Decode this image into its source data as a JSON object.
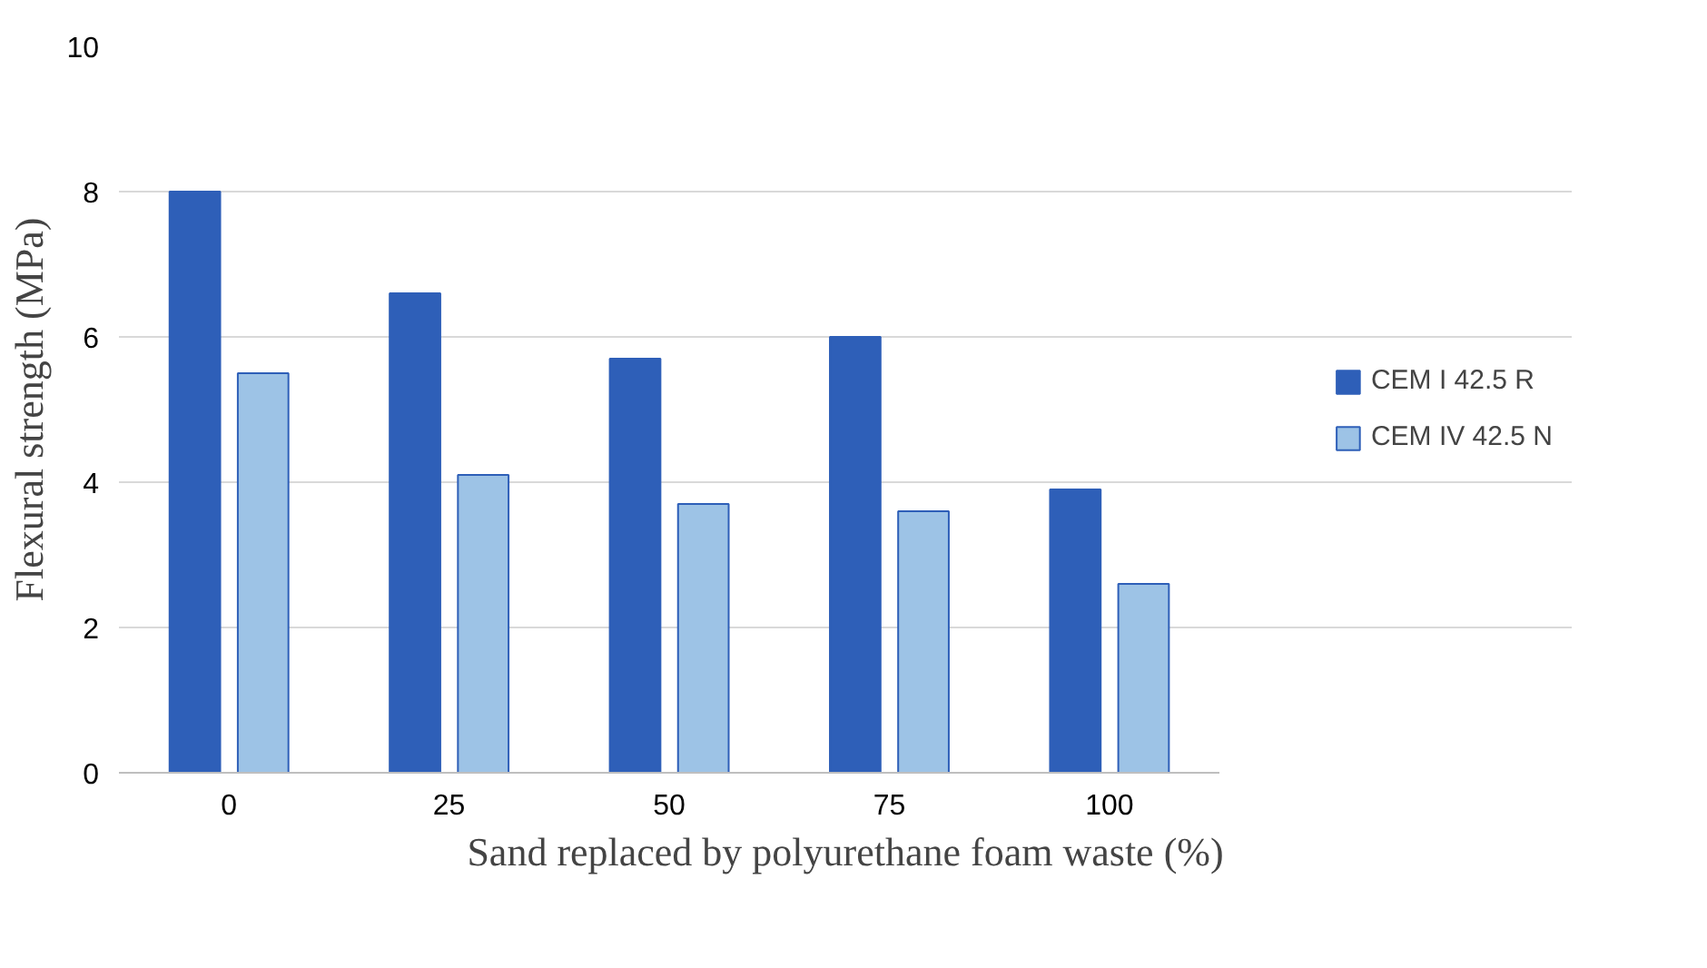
{
  "chart_data": {
    "type": "bar",
    "xlabel": "Sand replaced by polyurethane foam waste (%)",
    "ylabel": "Flexural strength (MPa)",
    "categories": [
      "0",
      "25",
      "50",
      "75",
      "100"
    ],
    "series": [
      {
        "name": "CEM I 42.5 R",
        "color": "#2e5fb8",
        "values": [
          8.0,
          6.6,
          5.7,
          6.0,
          3.9
        ]
      },
      {
        "name": "CEM IV 42.5 N",
        "color": "#9dc3e6",
        "values": [
          5.5,
          4.1,
          3.7,
          3.6,
          2.6
        ]
      }
    ],
    "ylim": [
      0,
      10
    ],
    "yticks": [
      0,
      2,
      4,
      6,
      8,
      10
    ],
    "grid": "y",
    "legend": "right"
  }
}
